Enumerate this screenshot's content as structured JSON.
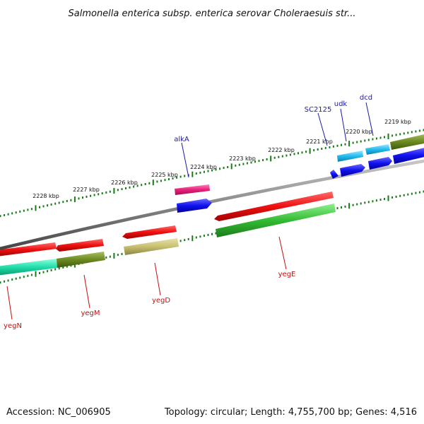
{
  "title": "Salmonella enterica subsp. enterica serovar Choleraesuis str...",
  "footer": {
    "accession": "Accession: NC_006905",
    "topology": "Topology: circular; Length: 4,755,700 bp; Genes: 4,516"
  },
  "kbp_labels": [
    "2228 kbp",
    "2227 kbp",
    "2226 kbp",
    "2225 kbp",
    "2224 kbp",
    "2223 kbp",
    "2222 kbp",
    "2221 kbp",
    "2220 kbp",
    "2219 kbp"
  ],
  "genes_top": [
    "alkA",
    "SC2125",
    "udk",
    "dcd"
  ],
  "genes_bottom": [
    "yegN",
    "yegM",
    "yegD",
    "yegE"
  ],
  "colors": {
    "backbone": "#888888",
    "red": "#ee1111",
    "blue": "#1111ee",
    "magenta": "#e8207a",
    "cyan": "#22bbee",
    "olive": "#6b8a22",
    "green": "#33bb33",
    "teal": "#22ddaa",
    "khaki": "#c8c070",
    "tick": "#1a7a1a"
  }
}
